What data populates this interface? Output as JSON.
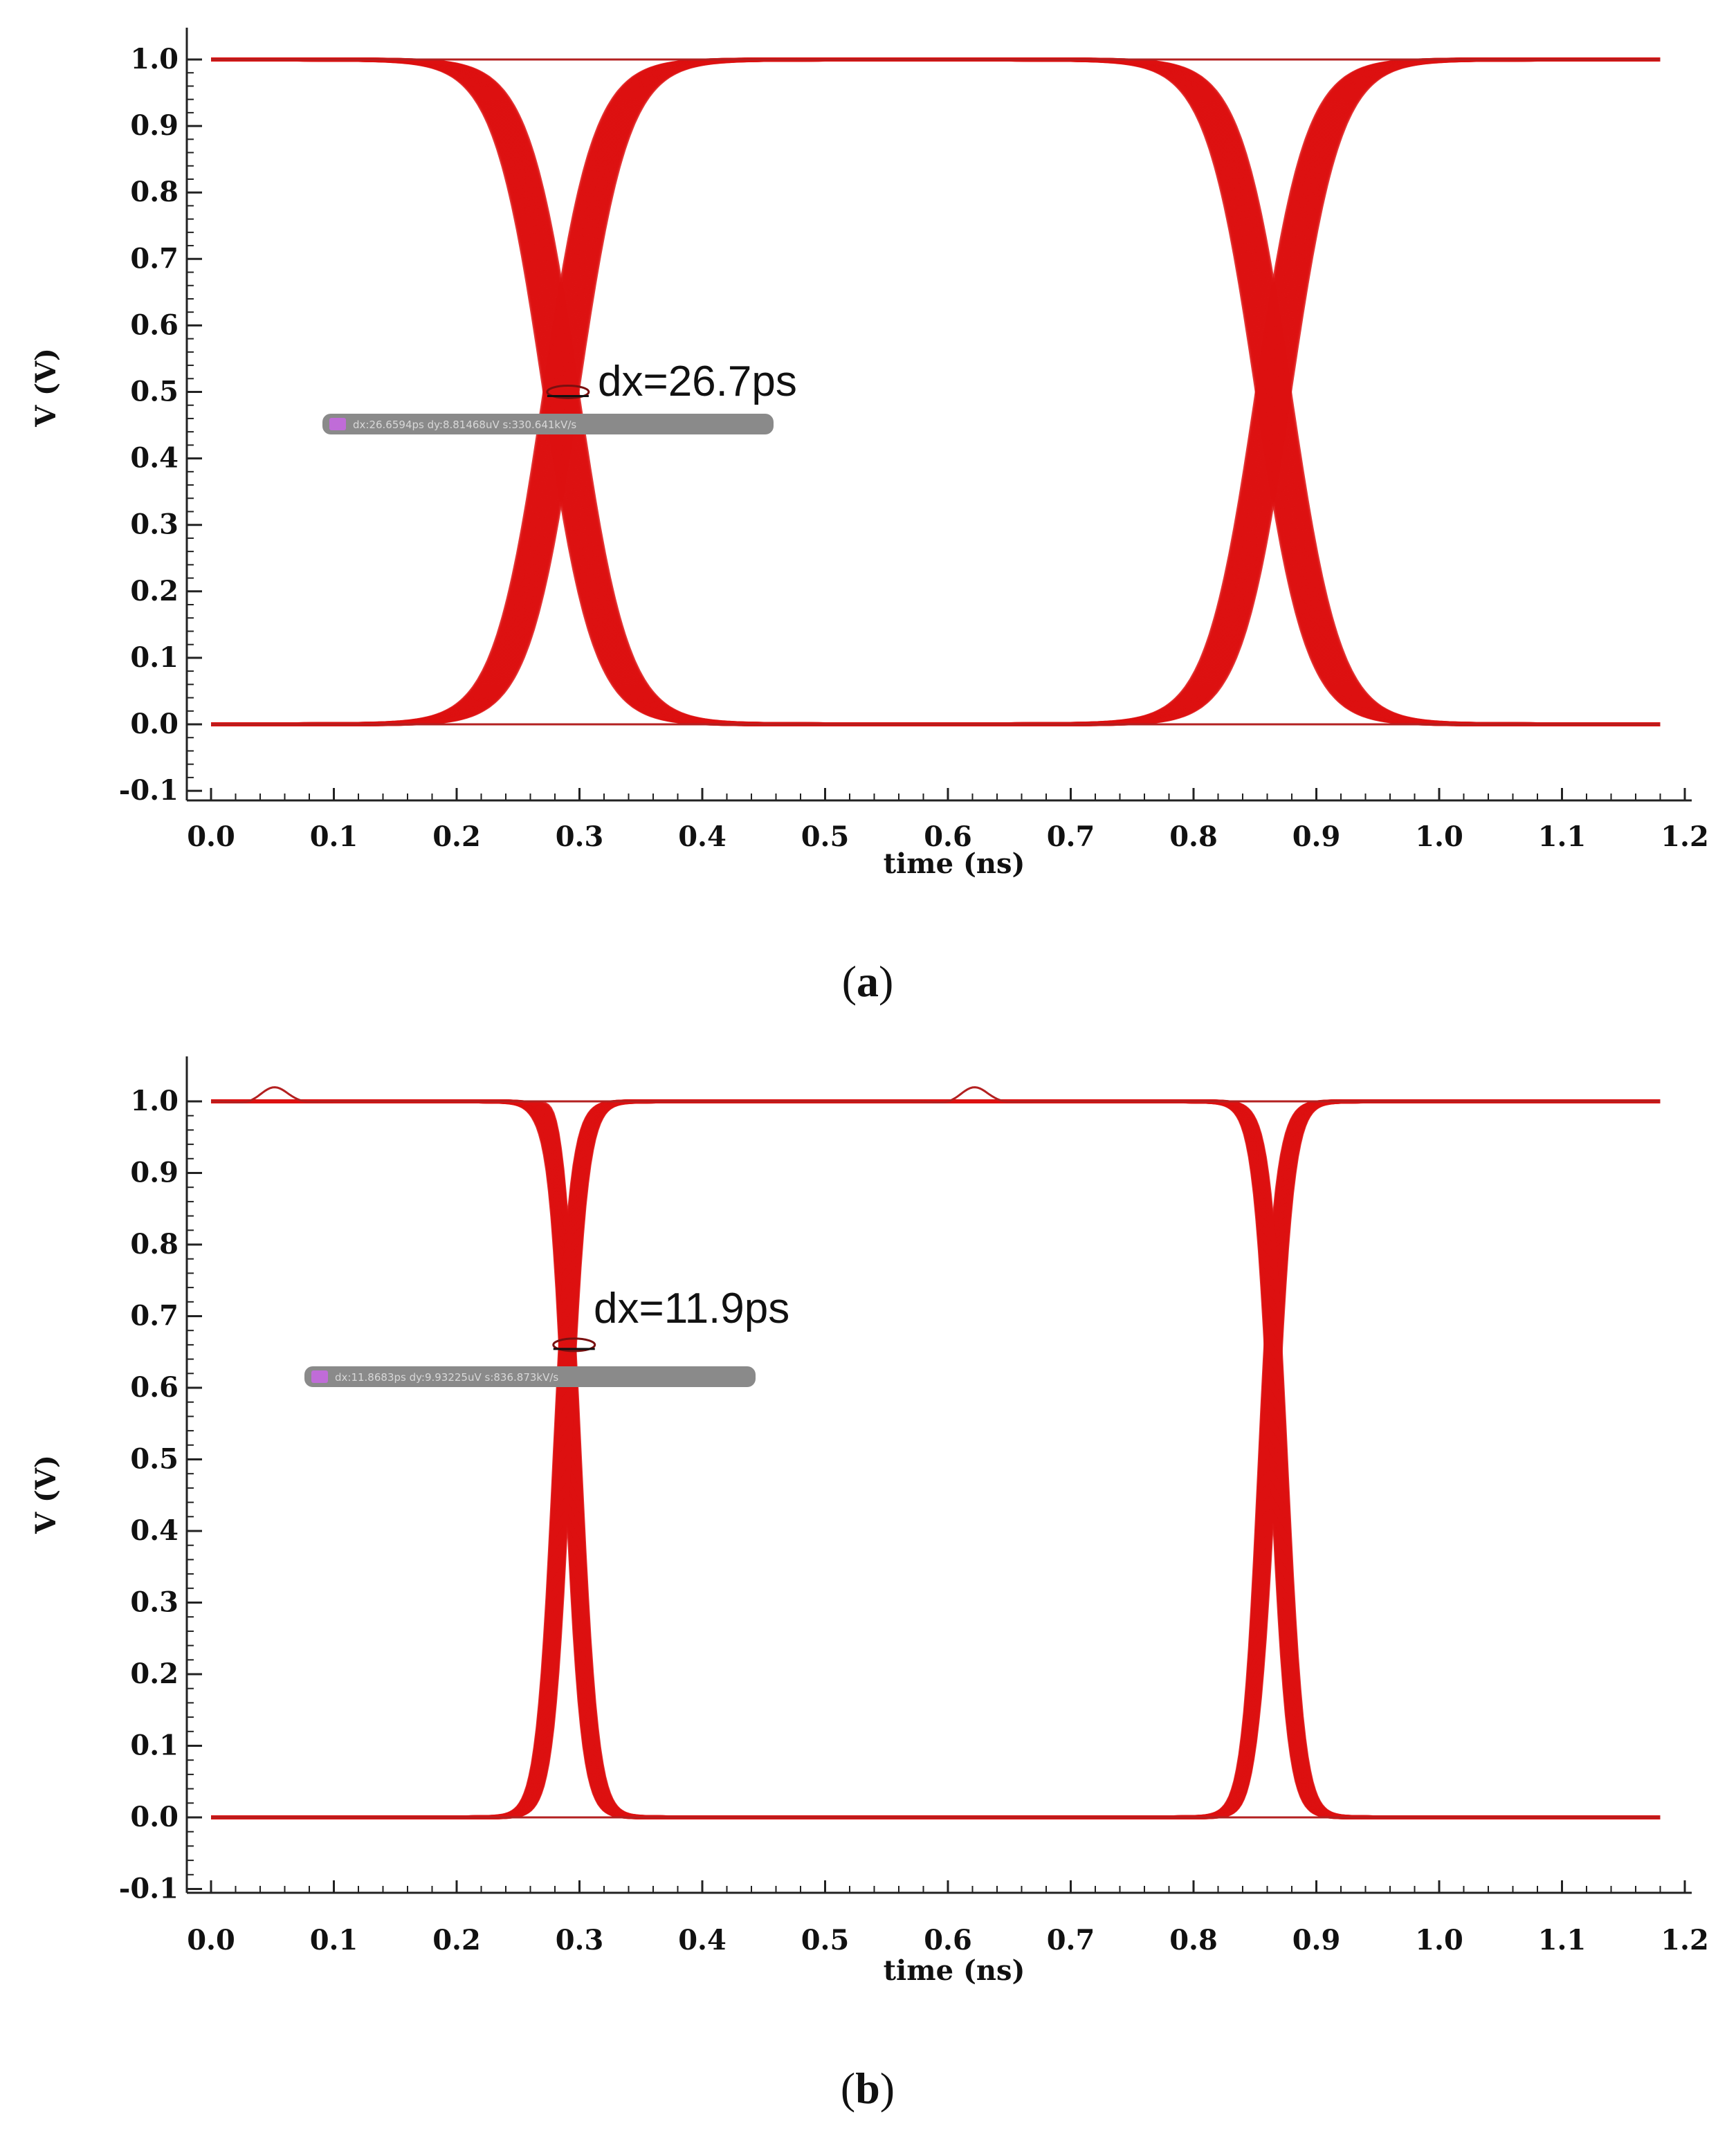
{
  "chart_data": [
    {
      "panel": "a",
      "type": "line",
      "plot_kind": "eye-diagram",
      "caption_letter": "a",
      "xlabel": "time (ns)",
      "ylabel": "V (V)",
      "xlim": [
        0.0,
        1.2
      ],
      "ylim": [
        -0.1,
        1.05
      ],
      "x_ticks": [
        "0.0",
        "0.1",
        "0.2",
        "0.3",
        "0.4",
        "0.5",
        "0.6",
        "0.7",
        "0.8",
        "0.9",
        "1.0",
        "1.1",
        "1.2"
      ],
      "y_ticks": [
        "1.0",
        "0.9",
        "0.8",
        "0.7",
        "0.6",
        "0.5",
        "0.4",
        "0.3",
        "0.2",
        "0.1",
        "0.0",
        "-0.1"
      ],
      "trace_color": "#dd1111",
      "trace_end": 1.18,
      "crossings": [
        0.285,
        0.865
      ],
      "crossing_level": 0.5,
      "transition_halfwidth": 0.13,
      "trace_spread": 0.0267,
      "overshoot": 0.0,
      "annotation": {
        "text": "dx=26.7ps",
        "x": 0.285,
        "y": 0.5
      },
      "tooltip": "dx:26.6594ps dy:8.81468uV s:330.641kV/s"
    },
    {
      "panel": "b",
      "type": "line",
      "plot_kind": "eye-diagram",
      "caption_letter": "b",
      "xlabel": "time (ns)",
      "ylabel": "V (V)",
      "xlim": [
        0.0,
        1.2
      ],
      "ylim": [
        -0.1,
        1.05
      ],
      "x_ticks": [
        "0.0",
        "0.1",
        "0.2",
        "0.3",
        "0.4",
        "0.5",
        "0.6",
        "0.7",
        "0.8",
        "0.9",
        "1.0",
        "1.1",
        "1.2"
      ],
      "y_ticks": [
        "1.0",
        "0.9",
        "0.8",
        "0.7",
        "0.6",
        "0.5",
        "0.4",
        "0.3",
        "0.2",
        "0.1",
        "0.0",
        "-0.1"
      ],
      "trace_color": "#dd1111",
      "trace_end": 1.18,
      "crossings": [
        0.29,
        0.865
      ],
      "crossing_level": 0.65,
      "transition_halfwidth": 0.045,
      "trace_spread": 0.0119,
      "overshoot": 0.025,
      "annotation": {
        "text": "dx=11.9ps",
        "x": 0.29,
        "y": 0.66
      },
      "tooltip": "dx:11.8683ps dy:9.93225uV s:836.873kV/s"
    }
  ]
}
